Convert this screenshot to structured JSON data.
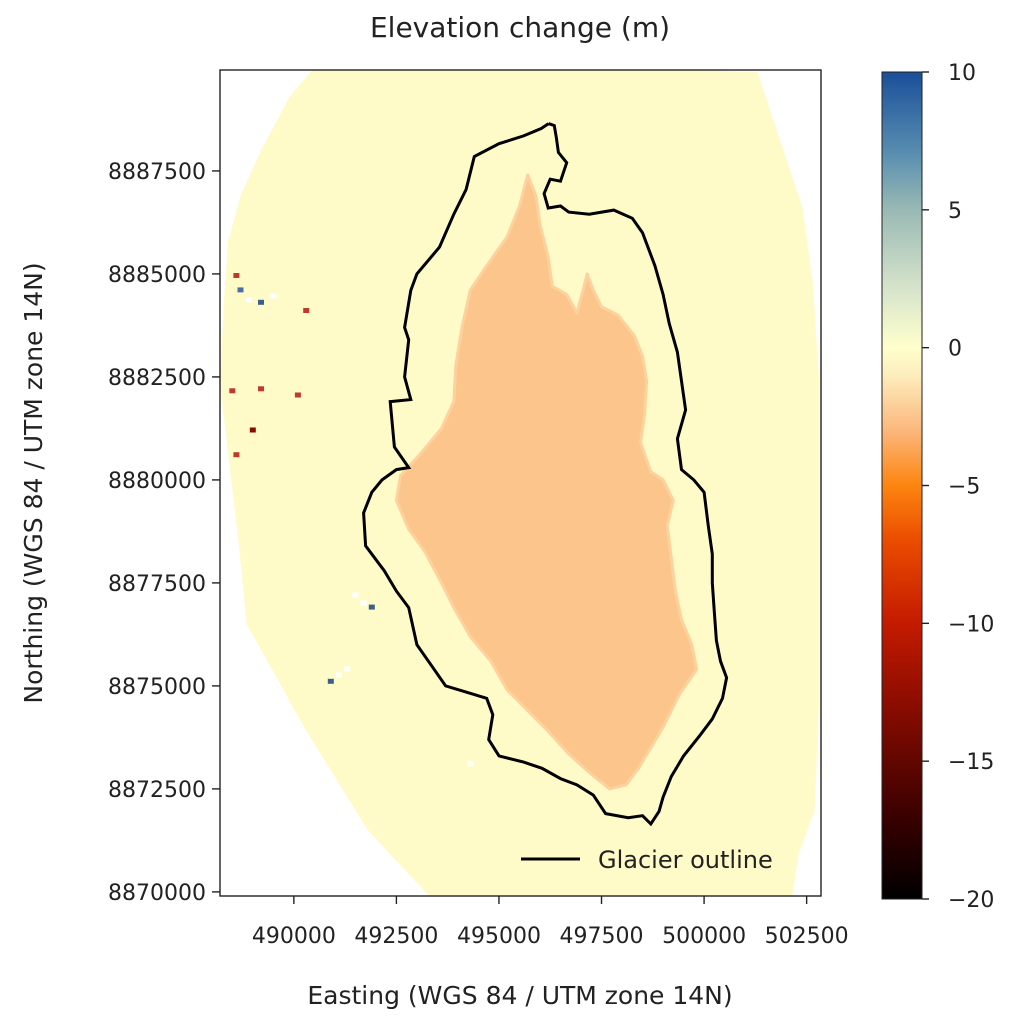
{
  "chart_data": {
    "type": "heatmap",
    "title": "Elevation change (m)",
    "xlabel": "Easting (WGS 84 / UTM zone 14N)",
    "ylabel": "Northing (WGS 84 / UTM zone 14N)",
    "xlim": [
      488200,
      502850
    ],
    "ylim": [
      8869900,
      8889950
    ],
    "x_ticks": [
      490000,
      492500,
      495000,
      497500,
      500000,
      502500
    ],
    "x_tick_labels": [
      "490000",
      "492500",
      "495000",
      "497500",
      "500000",
      "502500"
    ],
    "y_ticks": [
      8870000,
      8872500,
      8875000,
      8877500,
      8880000,
      8882500,
      8885000,
      8887500
    ],
    "y_tick_labels": [
      "8870000",
      "8872500",
      "8875000",
      "8877500",
      "8880000",
      "8882500",
      "8885000",
      "8887500"
    ],
    "colorbar": {
      "min": -20,
      "max": 10,
      "ticks": [
        10,
        5,
        0,
        -5,
        -10,
        -15,
        -20
      ],
      "tick_labels": [
        "10",
        "5",
        "0",
        "−5",
        "−10",
        "−15",
        "−20"
      ],
      "colormap": [
        {
          "value": -20,
          "color": "#000000"
        },
        {
          "value": -17,
          "color": "#3a0000"
        },
        {
          "value": -13,
          "color": "#8a0c00"
        },
        {
          "value": -10,
          "color": "#c41a00"
        },
        {
          "value": -7,
          "color": "#ea4c00"
        },
        {
          "value": -5,
          "color": "#fd8510"
        },
        {
          "value": -3,
          "color": "#fcb77c"
        },
        {
          "value": -1,
          "color": "#fdedbd"
        },
        {
          "value": 0,
          "color": "#ffffcc"
        },
        {
          "value": 2,
          "color": "#d9e6cc"
        },
        {
          "value": 5,
          "color": "#9ab9b4"
        },
        {
          "value": 7,
          "color": "#5a8fb0"
        },
        {
          "value": 10,
          "color": "#1a4f9a"
        }
      ]
    },
    "background_value": 0,
    "glacier_thinning_m": [
      -2,
      -3
    ],
    "legend": {
      "label": "Glacier outline",
      "position": "bottom-right"
    },
    "grid": false,
    "glacier_outline": [
      [
        496210,
        8888650
      ],
      [
        496030,
        8888530
      ],
      [
        495600,
        8888350
      ],
      [
        495000,
        8888160
      ],
      [
        494400,
        8887850
      ],
      [
        494200,
        8887050
      ],
      [
        493900,
        8886450
      ],
      [
        493550,
        8885650
      ],
      [
        493000,
        8885000
      ],
      [
        492850,
        8884600
      ],
      [
        492700,
        8883700
      ],
      [
        492800,
        8883400
      ],
      [
        492700,
        8882500
      ],
      [
        492850,
        8881950
      ],
      [
        492350,
        8881900
      ],
      [
        492450,
        8880800
      ],
      [
        492800,
        8880300
      ],
      [
        492500,
        8880250
      ],
      [
        492150,
        8880000
      ],
      [
        491900,
        8879700
      ],
      [
        491700,
        8879200
      ],
      [
        491750,
        8878400
      ],
      [
        492200,
        8877800
      ],
      [
        492500,
        8877300
      ],
      [
        492800,
        8876900
      ],
      [
        493000,
        8876000
      ],
      [
        493350,
        8875500
      ],
      [
        493700,
        8875000
      ],
      [
        494200,
        8874850
      ],
      [
        494700,
        8874700
      ],
      [
        494850,
        8874300
      ],
      [
        494750,
        8873700
      ],
      [
        495000,
        8873300
      ],
      [
        495600,
        8873150
      ],
      [
        496050,
        8873000
      ],
      [
        496500,
        8872750
      ],
      [
        496900,
        8872600
      ],
      [
        497300,
        8872350
      ],
      [
        497600,
        8871900
      ],
      [
        498150,
        8871800
      ],
      [
        498500,
        8871850
      ],
      [
        498700,
        8871650
      ],
      [
        498900,
        8871950
      ],
      [
        499000,
        8872300
      ],
      [
        499200,
        8872800
      ],
      [
        499500,
        8873300
      ],
      [
        499900,
        8873800
      ],
      [
        500200,
        8874200
      ],
      [
        500450,
        8874700
      ],
      [
        500550,
        8875200
      ],
      [
        500400,
        8875600
      ],
      [
        500300,
        8876100
      ],
      [
        500250,
        8876800
      ],
      [
        500200,
        8877500
      ],
      [
        500200,
        8878200
      ],
      [
        500100,
        8878900
      ],
      [
        500000,
        8879700
      ],
      [
        499750,
        8880000
      ],
      [
        499450,
        8880250
      ],
      [
        499350,
        8881000
      ],
      [
        499550,
        8881700
      ],
      [
        499450,
        8882400
      ],
      [
        499350,
        8883100
      ],
      [
        499150,
        8883800
      ],
      [
        499000,
        8884500
      ],
      [
        498800,
        8885200
      ],
      [
        498500,
        8886000
      ],
      [
        498250,
        8886350
      ],
      [
        497800,
        8886550
      ],
      [
        497200,
        8886450
      ],
      [
        496700,
        8886500
      ],
      [
        496500,
        8886650
      ],
      [
        496200,
        8886600
      ],
      [
        496100,
        8886950
      ],
      [
        496250,
        8887300
      ],
      [
        496500,
        8887250
      ],
      [
        496650,
        8887700
      ],
      [
        496450,
        8887950
      ],
      [
        496400,
        8888300
      ],
      [
        496350,
        8888600
      ]
    ],
    "thinning_area_outline": [
      [
        495700,
        8887400
      ],
      [
        495500,
        8886650
      ],
      [
        495200,
        8885900
      ],
      [
        494700,
        8885200
      ],
      [
        494300,
        8884600
      ],
      [
        494100,
        8883700
      ],
      [
        493950,
        8882800
      ],
      [
        493900,
        8881900
      ],
      [
        493600,
        8881250
      ],
      [
        493100,
        8880650
      ],
      [
        492600,
        8880100
      ],
      [
        492500,
        8879500
      ],
      [
        492800,
        8878800
      ],
      [
        493200,
        8878250
      ],
      [
        493600,
        8877500
      ],
      [
        493900,
        8876900
      ],
      [
        494300,
        8876200
      ],
      [
        494800,
        8875600
      ],
      [
        495200,
        8874900
      ],
      [
        495700,
        8874400
      ],
      [
        496200,
        8873900
      ],
      [
        496700,
        8873350
      ],
      [
        497200,
        8872900
      ],
      [
        497700,
        8872500
      ],
      [
        498100,
        8872600
      ],
      [
        498400,
        8873000
      ],
      [
        498700,
        8873500
      ],
      [
        499000,
        8874000
      ],
      [
        499400,
        8874800
      ],
      [
        499820,
        8875400
      ],
      [
        499700,
        8876000
      ],
      [
        499450,
        8876600
      ],
      [
        499300,
        8877300
      ],
      [
        499200,
        8878100
      ],
      [
        499100,
        8878900
      ],
      [
        499250,
        8879500
      ],
      [
        499000,
        8880000
      ],
      [
        498700,
        8880200
      ],
      [
        498450,
        8880900
      ],
      [
        498550,
        8881600
      ],
      [
        498600,
        8882400
      ],
      [
        498500,
        8883000
      ],
      [
        498300,
        8883500
      ],
      [
        497900,
        8884000
      ],
      [
        497500,
        8884200
      ],
      [
        497300,
        8884600
      ],
      [
        497150,
        8885000
      ],
      [
        497050,
        8884600
      ],
      [
        496900,
        8884050
      ],
      [
        496650,
        8884500
      ],
      [
        496300,
        8884700
      ],
      [
        496200,
        8885400
      ],
      [
        496000,
        8886200
      ],
      [
        495900,
        8886900
      ]
    ],
    "artifact_patches": [
      {
        "x": 488900,
        "y": 8884350,
        "color": "#ffffff"
      },
      {
        "x": 489200,
        "y": 8884300,
        "color": "#3b5f8a"
      },
      {
        "x": 489500,
        "y": 8884450,
        "color": "#ffffff"
      },
      {
        "x": 488700,
        "y": 8884600,
        "color": "#4a6fa5"
      },
      {
        "x": 490300,
        "y": 8884100,
        "color": "#c0392b"
      },
      {
        "x": 491700,
        "y": 8877000,
        "color": "#ffffff"
      },
      {
        "x": 491900,
        "y": 8876900,
        "color": "#3b5f8a"
      },
      {
        "x": 491500,
        "y": 8877200,
        "color": "#ffffff"
      },
      {
        "x": 491100,
        "y": 8875250,
        "color": "#ffffff"
      },
      {
        "x": 490900,
        "y": 8875100,
        "color": "#3b5f8a"
      },
      {
        "x": 491300,
        "y": 8875400,
        "color": "#ffffff"
      },
      {
        "x": 488500,
        "y": 8882150,
        "color": "#c0392b"
      },
      {
        "x": 489200,
        "y": 8882200,
        "color": "#c0392b"
      },
      {
        "x": 490100,
        "y": 8882050,
        "color": "#c0392b"
      },
      {
        "x": 488600,
        "y": 8884950,
        "color": "#c0392b"
      },
      {
        "x": 489000,
        "y": 8881200,
        "color": "#8a0c00"
      },
      {
        "x": 494300,
        "y": 8873100,
        "color": "#ffffff"
      },
      {
        "x": 488600,
        "y": 8880600,
        "color": "#c0392b"
      }
    ],
    "data_coverage_outline": [
      [
        490450,
        8889950
      ],
      [
        496300,
        8889960
      ],
      [
        499550,
        8889960
      ],
      [
        501300,
        8889900
      ],
      [
        501500,
        8889300
      ],
      [
        501900,
        8888100
      ],
      [
        502400,
        8886600
      ],
      [
        502650,
        8884800
      ],
      [
        502800,
        8882500
      ],
      [
        502800,
        8880000
      ],
      [
        502800,
        8877000
      ],
      [
        502800,
        8874500
      ],
      [
        502700,
        8872000
      ],
      [
        502300,
        8870900
      ],
      [
        502150,
        8869900
      ],
      [
        496000,
        8869900
      ],
      [
        493300,
        8869900
      ],
      [
        491800,
        8871500
      ],
      [
        490250,
        8874000
      ],
      [
        488850,
        8876500
      ],
      [
        488650,
        8878500
      ],
      [
        488200,
        8882300
      ],
      [
        488300,
        8884400
      ],
      [
        488400,
        8885800
      ],
      [
        488700,
        8886900
      ],
      [
        489200,
        8888000
      ],
      [
        489900,
        8889300
      ]
    ]
  }
}
